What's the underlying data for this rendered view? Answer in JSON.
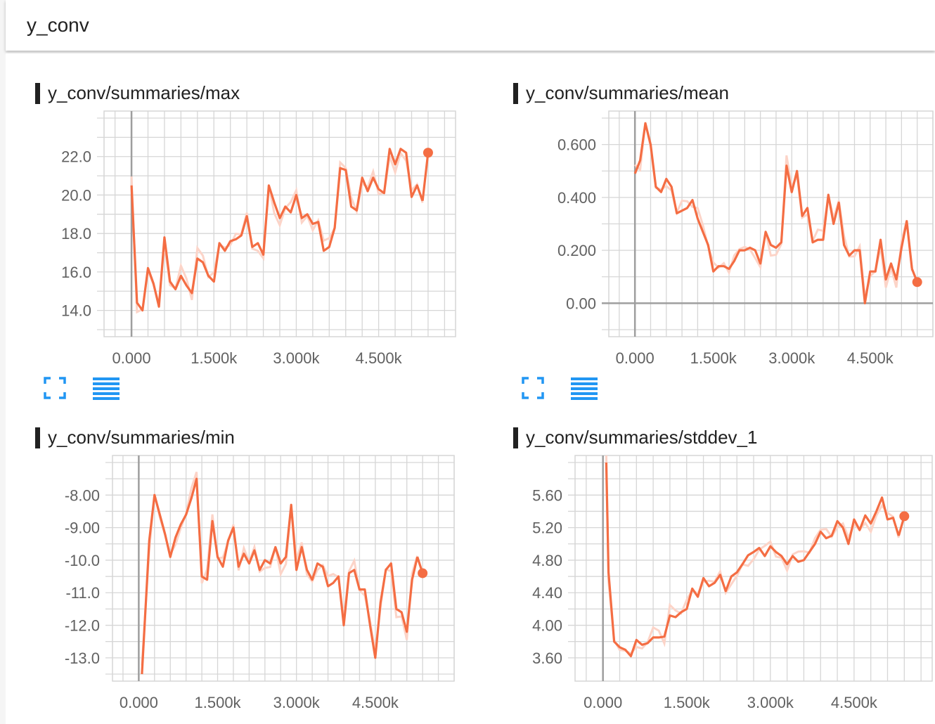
{
  "header": {
    "title": "y_conv"
  },
  "colors": {
    "line": "#f46d43",
    "smooth_raw": "#fcd4c8",
    "grid": "#d6d6d6",
    "axis": "#9e9e9e",
    "icon": "#2196f3"
  },
  "tools": {
    "fit_icon": "fit-domain-icon",
    "data_icon": "data-table-icon"
  },
  "chart_data": [
    {
      "type": "line",
      "title": "y_conv/summaries/max",
      "xlim": [
        -500,
        5900
      ],
      "ylim": [
        13.0,
        24.0
      ],
      "xticks": [
        0,
        1500,
        3000,
        4500
      ],
      "xtick_labels": [
        "0.000",
        "1.500k",
        "3.000k",
        "4.500k"
      ],
      "yticks": [
        14,
        16,
        18,
        20,
        22
      ],
      "ytick_labels": [
        "14.0",
        "16.0",
        "18.0",
        "20.0",
        "22.0"
      ],
      "series": [
        {
          "name": "smoothed",
          "x": [
            0,
            100,
            200,
            300,
            400,
            500,
            600,
            700,
            800,
            900,
            1000,
            1100,
            1200,
            1300,
            1400,
            1500,
            1600,
            1700,
            1800,
            1900,
            2000,
            2100,
            2200,
            2300,
            2400,
            2500,
            2600,
            2700,
            2800,
            2900,
            3000,
            3100,
            3200,
            3300,
            3400,
            3500,
            3600,
            3700,
            3800,
            3900,
            4000,
            4100,
            4200,
            4300,
            4400,
            4500,
            4600,
            4700,
            4800,
            4900,
            5000,
            5100,
            5200,
            5300
          ],
          "y": [
            20.5,
            14.4,
            14.0,
            16.2,
            15.4,
            14.2,
            17.8,
            15.5,
            15.1,
            15.8,
            15.3,
            14.9,
            16.7,
            16.5,
            15.8,
            15.5,
            17.5,
            17.1,
            17.6,
            17.7,
            17.9,
            18.9,
            17.3,
            17.5,
            16.9,
            20.5,
            19.6,
            18.8,
            19.4,
            19.1,
            20.0,
            18.8,
            19.0,
            18.5,
            18.6,
            17.1,
            17.3,
            18.3,
            21.4,
            21.3,
            19.4,
            19.2,
            20.9,
            20.2,
            20.9,
            20.3,
            20.1,
            22.4,
            21.6,
            22.4,
            22.2,
            19.9,
            20.5,
            19.7
          ]
        },
        {
          "name": "last",
          "x": [
            5400
          ],
          "y": [
            22.2
          ]
        }
      ]
    },
    {
      "type": "line",
      "title": "y_conv/summaries/mean",
      "xlim": [
        -500,
        5700
      ],
      "ylim": [
        -0.1,
        0.7
      ],
      "xticks": [
        0,
        1500,
        3000,
        4500
      ],
      "xtick_labels": [
        "0.000",
        "1.500k",
        "3.000k",
        "4.500k"
      ],
      "yticks": [
        0,
        0.2,
        0.4,
        0.6
      ],
      "ytick_labels": [
        "0.00",
        "0.200",
        "0.400",
        "0.600"
      ],
      "series": [
        {
          "name": "smoothed",
          "x": [
            0,
            100,
            200,
            300,
            400,
            500,
            600,
            700,
            800,
            900,
            1000,
            1100,
            1200,
            1300,
            1400,
            1500,
            1600,
            1700,
            1800,
            1900,
            2000,
            2100,
            2200,
            2300,
            2400,
            2500,
            2600,
            2700,
            2800,
            2900,
            3000,
            3100,
            3200,
            3300,
            3400,
            3500,
            3600,
            3700,
            3800,
            3900,
            4000,
            4100,
            4200,
            4300,
            4400,
            4500,
            4600,
            4700,
            4800,
            4900,
            5000,
            5100,
            5200,
            5300
          ],
          "y": [
            0.49,
            0.54,
            0.68,
            0.6,
            0.44,
            0.42,
            0.47,
            0.44,
            0.34,
            0.35,
            0.36,
            0.39,
            0.32,
            0.27,
            0.22,
            0.12,
            0.14,
            0.14,
            0.13,
            0.16,
            0.2,
            0.2,
            0.21,
            0.2,
            0.15,
            0.27,
            0.22,
            0.21,
            0.23,
            0.52,
            0.42,
            0.5,
            0.33,
            0.36,
            0.23,
            0.24,
            0.24,
            0.41,
            0.3,
            0.38,
            0.22,
            0.18,
            0.2,
            0.2,
            0.0,
            0.12,
            0.12,
            0.24,
            0.09,
            0.15,
            0.09,
            0.21,
            0.31,
            0.13
          ]
        },
        {
          "name": "last",
          "x": [
            5400
          ],
          "y": [
            0.08
          ]
        }
      ]
    },
    {
      "type": "line",
      "title": "y_conv/summaries/min",
      "xlim": [
        -500,
        6000
      ],
      "ylim": [
        -13.5,
        -7.0
      ],
      "xticks": [
        0,
        1500,
        3000,
        4500
      ],
      "xtick_labels": [
        "0.000",
        "1.500k",
        "3.000k",
        "4.500k"
      ],
      "yticks": [
        -13,
        -12,
        -11,
        -10,
        -9,
        -8
      ],
      "ytick_labels": [
        "-13.0",
        "-12.0",
        "-11.0",
        "-10.0",
        "-9.00",
        "-8.00"
      ],
      "series": [
        {
          "name": "smoothed",
          "x": [
            60,
            200,
            300,
            400,
            500,
            600,
            700,
            800,
            900,
            1000,
            1100,
            1200,
            1300,
            1400,
            1500,
            1600,
            1700,
            1800,
            1900,
            2000,
            2100,
            2200,
            2300,
            2400,
            2500,
            2600,
            2700,
            2800,
            2900,
            3000,
            3100,
            3200,
            3300,
            3400,
            3500,
            3600,
            3700,
            3800,
            3900,
            4000,
            4100,
            4200,
            4300,
            4400,
            4500,
            4600,
            4700,
            4800,
            4900,
            5000,
            5100,
            5200,
            5300
          ],
          "y": [
            -13.5,
            -9.4,
            -8.0,
            -8.6,
            -9.2,
            -9.9,
            -9.3,
            -8.9,
            -8.6,
            -8.1,
            -7.5,
            -10.5,
            -10.6,
            -8.8,
            -9.9,
            -10.2,
            -9.4,
            -9.0,
            -10.2,
            -9.8,
            -10.1,
            -9.7,
            -10.3,
            -10.0,
            -10.1,
            -9.6,
            -10.1,
            -9.9,
            -8.3,
            -10.3,
            -9.6,
            -10.3,
            -10.6,
            -10.1,
            -10.2,
            -10.8,
            -10.7,
            -10.5,
            -12.0,
            -10.4,
            -10.3,
            -10.9,
            -10.9,
            -12.0,
            -13.0,
            -11.3,
            -10.3,
            -10.1,
            -11.5,
            -11.6,
            -12.2,
            -10.6,
            -9.9
          ]
        },
        {
          "name": "last",
          "x": [
            5400
          ],
          "y": [
            -10.4
          ]
        }
      ]
    },
    {
      "type": "line",
      "title": "y_conv/summaries/stddev_1",
      "xlim": [
        -500,
        5900
      ],
      "ylim": [
        3.4,
        6.0
      ],
      "xticks": [
        0,
        1500,
        3000,
        4500
      ],
      "xtick_labels": [
        "0.000",
        "1.500k",
        "3.000k",
        "4.500k"
      ],
      "yticks": [
        3.6,
        4.0,
        4.4,
        4.8,
        5.2,
        5.6
      ],
      "ytick_labels": [
        "3.60",
        "4.00",
        "4.40",
        "4.80",
        "5.20",
        "5.60"
      ],
      "series": [
        {
          "name": "smoothed",
          "x": [
            60,
            100,
            200,
            300,
            400,
            500,
            600,
            700,
            800,
            900,
            1000,
            1100,
            1200,
            1300,
            1400,
            1500,
            1600,
            1700,
            1800,
            1900,
            2000,
            2100,
            2200,
            2300,
            2400,
            2500,
            2600,
            2700,
            2800,
            2900,
            3000,
            3100,
            3200,
            3300,
            3400,
            3500,
            3600,
            3700,
            3800,
            3900,
            4000,
            4100,
            4200,
            4300,
            4400,
            4500,
            4600,
            4700,
            4800,
            4900,
            5000,
            5100,
            5200,
            5300
          ],
          "y": [
            6.0,
            4.65,
            3.8,
            3.73,
            3.7,
            3.62,
            3.82,
            3.76,
            3.78,
            3.85,
            3.85,
            3.86,
            4.12,
            4.1,
            4.16,
            4.2,
            4.45,
            4.35,
            4.58,
            4.48,
            4.52,
            4.62,
            4.42,
            4.6,
            4.65,
            4.75,
            4.86,
            4.9,
            4.95,
            4.85,
            4.97,
            4.9,
            4.85,
            4.75,
            4.85,
            4.78,
            4.8,
            4.9,
            5.0,
            5.15,
            5.07,
            5.1,
            5.28,
            5.2,
            5.0,
            5.3,
            5.17,
            5.35,
            5.25,
            5.4,
            5.57,
            5.3,
            5.32,
            5.1
          ]
        },
        {
          "name": "last",
          "x": [
            5400
          ],
          "y": [
            5.34
          ]
        }
      ]
    }
  ]
}
